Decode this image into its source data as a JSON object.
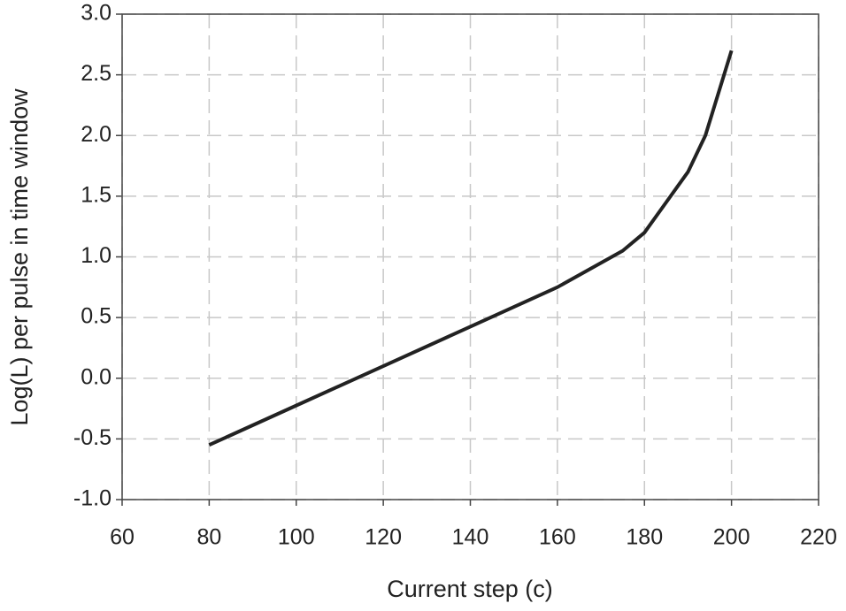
{
  "chart_data": {
    "type": "line",
    "x_label": "Current step (c)",
    "y_label": "Log(L) per pulse in time window",
    "x": [
      80,
      100,
      120,
      140,
      160,
      175,
      180,
      185,
      190,
      194,
      200
    ],
    "series": [
      {
        "color": "#222222",
        "values": [
          -0.55,
          -0.225,
          0.1,
          0.425,
          0.75,
          1.05,
          1.2,
          1.45,
          1.7,
          2.0,
          2.7
        ]
      }
    ],
    "xlim": [
      60,
      220
    ],
    "xticks": [
      60,
      80,
      100,
      120,
      140,
      160,
      180,
      200,
      220
    ],
    "ylim": [
      -1,
      3
    ],
    "yticks": [
      {
        "value": -1,
        "label": "-1.0"
      },
      -0.5,
      {
        "value": 0,
        "label": "0.0"
      },
      0.5,
      {
        "value": 1,
        "label": "1.0"
      },
      1.5,
      {
        "value": 2,
        "label": "2.0"
      },
      2.5,
      {
        "value": 3,
        "label": "3.0"
      }
    ],
    "grid": true
  }
}
